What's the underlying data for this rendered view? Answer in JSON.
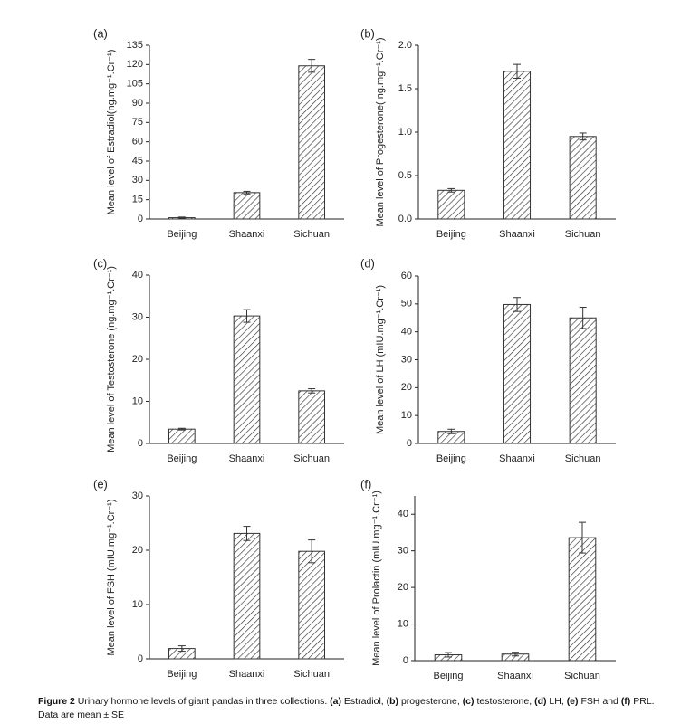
{
  "chart_data": [
    {
      "type": "bar",
      "panel": "(a)",
      "ylabel": "Mean level of Estradiol(ng.mg⁻¹.Cr⁻¹)",
      "categories": [
        "Beijing",
        "Shaanxi",
        "Sichuan"
      ],
      "values": [
        1,
        20.5,
        119
      ],
      "errors": [
        0.5,
        1,
        5
      ],
      "ylim": [
        0,
        135
      ],
      "yticks": [
        0,
        15,
        30,
        45,
        60,
        75,
        90,
        105,
        120,
        135
      ],
      "color": "#333333",
      "pattern": "hatch"
    },
    {
      "type": "bar",
      "panel": "(b)",
      "ylabel": "Mean level of Progesterone( ng.mg⁻¹.Cr⁻¹)",
      "categories": [
        "Beijing",
        "Shaanxi",
        "Sichuan"
      ],
      "values": [
        0.33,
        1.7,
        0.95
      ],
      "errors": [
        0.02,
        0.08,
        0.04
      ],
      "ylim": [
        0,
        2
      ],
      "yticks": [
        {
          "value": 0,
          "label": "0.0"
        },
        0.5,
        {
          "value": 1,
          "label": "1.0"
        },
        1.5,
        {
          "value": 2,
          "label": "2.0"
        }
      ],
      "color": "#333333",
      "pattern": "hatch"
    },
    {
      "type": "bar",
      "panel": "(c)",
      "ylabel": "Mean level of Testosterone (ng.mg⁻¹.Cr⁻¹)",
      "categories": [
        "Beijing",
        "Shaanxi",
        "Sichuan"
      ],
      "values": [
        3.4,
        30.3,
        12.5
      ],
      "errors": [
        0.2,
        1.5,
        0.5
      ],
      "ylim": [
        0,
        40
      ],
      "yticks": [
        0,
        10,
        20,
        30,
        40
      ],
      "color": "#333333",
      "pattern": "hatch"
    },
    {
      "type": "bar",
      "panel": "(d)",
      "ylabel": "Mean level of LH (mIU.mg⁻¹.Cr⁻¹)",
      "categories": [
        "Beijing",
        "Shaanxi",
        "Sichuan"
      ],
      "values": [
        4.3,
        49.8,
        45
      ],
      "errors": [
        0.8,
        2.5,
        3.8
      ],
      "ylim": [
        0,
        60
      ],
      "yticks": [
        0,
        10,
        20,
        30,
        40,
        50,
        60
      ],
      "color": "#333333",
      "pattern": "hatch"
    },
    {
      "type": "bar",
      "panel": "(e)",
      "ylabel": "Mean level of FSH (mIU.mg⁻¹.Cr⁻¹)",
      "categories": [
        "Beijing",
        "Shaanxi",
        "Sichuan"
      ],
      "values": [
        1.9,
        23.1,
        19.8
      ],
      "errors": [
        0.5,
        1.3,
        2.1
      ],
      "ylim": [
        0,
        30
      ],
      "yticks": [
        0,
        10,
        20,
        30
      ],
      "color": "#333333",
      "pattern": "hatch"
    },
    {
      "type": "bar",
      "panel": "(f)",
      "ylabel": "Mean level of Prolactin (mIU.mg⁻¹.Cr⁻¹)",
      "categories": [
        "Beijing",
        "Shaanxi",
        "Sichuan"
      ],
      "values": [
        1.6,
        1.8,
        33.6
      ],
      "errors": [
        0.6,
        0.5,
        4.2
      ],
      "ylim": [
        0,
        45
      ],
      "yticks": [
        0,
        10,
        20,
        30,
        40
      ],
      "color": "#333333",
      "pattern": "hatch"
    }
  ],
  "caption": [
    {
      "text": "Figure 2",
      "bold": true
    },
    {
      "text": " Urinary hormone levels of giant pandas in three collections. ",
      "bold": false
    },
    {
      "text": "(a)",
      "bold": true
    },
    {
      "text": " Estradiol, ",
      "bold": false
    },
    {
      "text": "(b)",
      "bold": true
    },
    {
      "text": " progesterone, ",
      "bold": false
    },
    {
      "text": "(c)",
      "bold": true
    },
    {
      "text": " testosterone, ",
      "bold": false
    },
    {
      "text": "(d)",
      "bold": true
    },
    {
      "text": " LH, ",
      "bold": false
    },
    {
      "text": "(e)",
      "bold": true
    },
    {
      "text": " FSH and ",
      "bold": false
    },
    {
      "text": "(f)",
      "bold": true
    },
    {
      "text": " PRL. Data are mean ± SE",
      "bold": false
    }
  ]
}
